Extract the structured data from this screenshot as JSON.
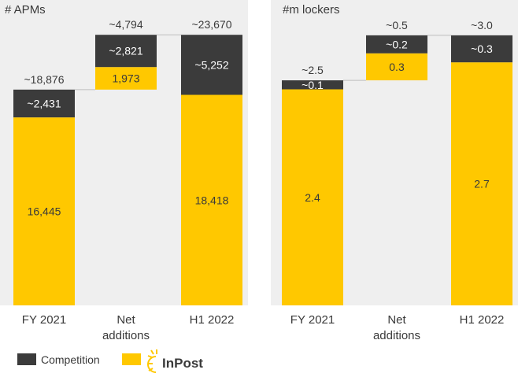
{
  "colors": {
    "competition": "#3b3b3b",
    "inpost": "#ffc800",
    "panel": "#efefef",
    "text": "#3a3a3a"
  },
  "chart_data": [
    {
      "type": "bar",
      "title": "# APMs",
      "categories": [
        "FY 2021",
        "Net additions",
        "H1 2022"
      ],
      "category_lines": [
        [
          "FY 2021"
        ],
        [
          "Net",
          "additions"
        ],
        [
          "H1 2022"
        ]
      ],
      "series": [
        {
          "name": "InPost",
          "values": [
            16445,
            1973,
            18418
          ],
          "labels": [
            "16,445",
            "1,973",
            "18,418"
          ]
        },
        {
          "name": "Competition",
          "values": [
            2431,
            2821,
            5252
          ],
          "labels": [
            "~2,431",
            "~2,821",
            "~5,252"
          ]
        }
      ],
      "bases": [
        0,
        18876,
        0
      ],
      "totals": [
        18876,
        4794,
        23670
      ],
      "total_labels": [
        "~18,876",
        "~4,794",
        "~23,670"
      ],
      "ylim": [
        0,
        25200
      ],
      "xlabel": "",
      "ylabel": "",
      "grid": false
    },
    {
      "type": "bar",
      "title": "#m lockers",
      "categories": [
        "FY 2021",
        "Net additions",
        "H1 2022"
      ],
      "category_lines": [
        [
          "FY 2021"
        ],
        [
          "Net",
          "additions"
        ],
        [
          "H1 2022"
        ]
      ],
      "series": [
        {
          "name": "InPost",
          "values": [
            2.4,
            0.3,
            2.7
          ],
          "labels": [
            "2.4",
            "0.3",
            "2.7"
          ]
        },
        {
          "name": "Competition",
          "values": [
            0.1,
            0.2,
            0.3
          ],
          "labels": [
            "~0.1",
            "~0.2",
            "~0.3"
          ]
        }
      ],
      "bases": [
        0,
        2.5,
        0
      ],
      "totals": [
        2.5,
        0.5,
        3.0
      ],
      "total_labels": [
        "~2.5",
        "~0.5",
        "~3.0"
      ],
      "ylim": [
        0,
        3.2
      ],
      "xlabel": "",
      "ylabel": "",
      "grid": false
    }
  ],
  "legend": {
    "competition_label": "Competition",
    "inpost_logo_text": "InPost"
  }
}
